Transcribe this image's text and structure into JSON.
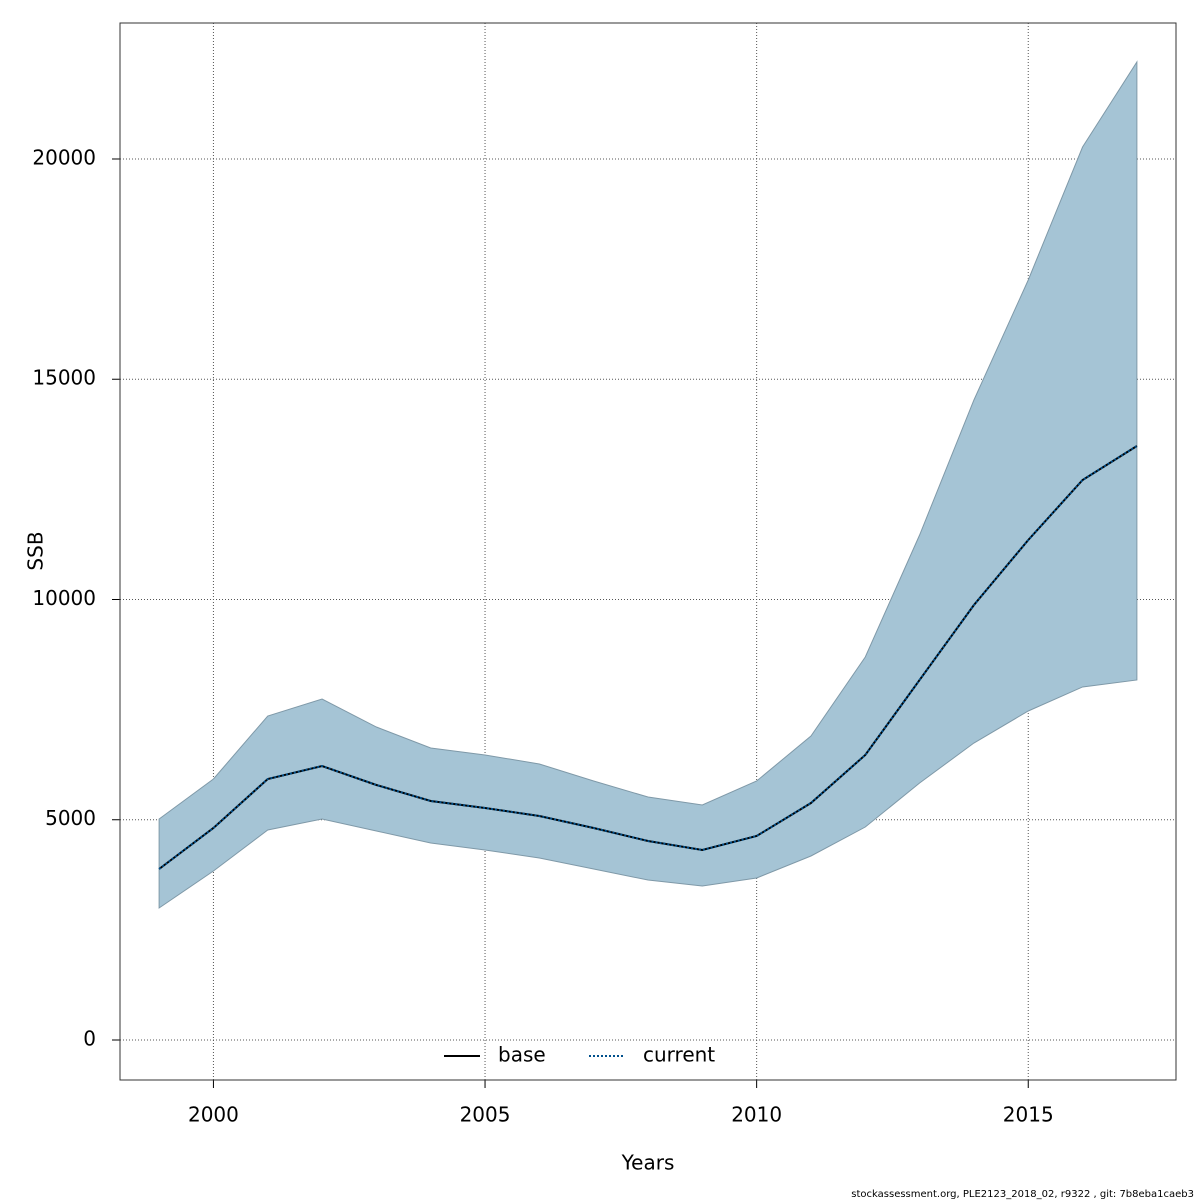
{
  "chart_data": {
    "type": "line",
    "x_label": "Years",
    "y_label": "SSB",
    "footer": "stockassessment.org, PLE2123_2018_02, r9322 , git: 7b8eba1caeb3",
    "x": [
      1999,
      2000,
      2001,
      2002,
      2003,
      2004,
      2005,
      2006,
      2007,
      2008,
      2009,
      2010,
      2011,
      2012,
      2013,
      2014,
      2015,
      2016,
      2017
    ],
    "band": {
      "color": "#a5c4d5",
      "upper": [
        5017,
        5925,
        7355,
        7741,
        7105,
        6629,
        6470,
        6266,
        5880,
        5516,
        5335,
        5880,
        6901,
        8695,
        11464,
        14529,
        17253,
        20272,
        22202
      ],
      "lower": [
        2997,
        3837,
        4767,
        5017,
        4745,
        4472,
        4313,
        4132,
        3882,
        3632,
        3496,
        3678,
        4177,
        4835,
        5834,
        6742,
        7469,
        8014,
        8173
      ]
    },
    "series": [
      {
        "name": "base",
        "color": "#000000",
        "dash": "solid",
        "values": [
          3882,
          4813,
          5925,
          6220,
          5789,
          5426,
          5267,
          5085,
          4813,
          4518,
          4313,
          4631,
          5380,
          6470,
          8173,
          9875,
          11351,
          12713,
          13485
        ]
      },
      {
        "name": "current",
        "color": "#00508c",
        "dash": "dotted",
        "values": [
          3882,
          4813,
          5925,
          6220,
          5789,
          5426,
          5267,
          5085,
          4813,
          4518,
          4313,
          4631,
          5380,
          6470,
          8173,
          9875,
          11351,
          12713,
          13485
        ]
      }
    ],
    "xlim": [
      1998.28,
      2017.72
    ],
    "xticks": [
      2000,
      2005,
      2010,
      2015
    ],
    "ylim": [
      -908,
      23087
    ],
    "yticks": [
      0,
      5000,
      10000,
      15000,
      20000
    ],
    "grid": true,
    "legend": "bottom"
  }
}
